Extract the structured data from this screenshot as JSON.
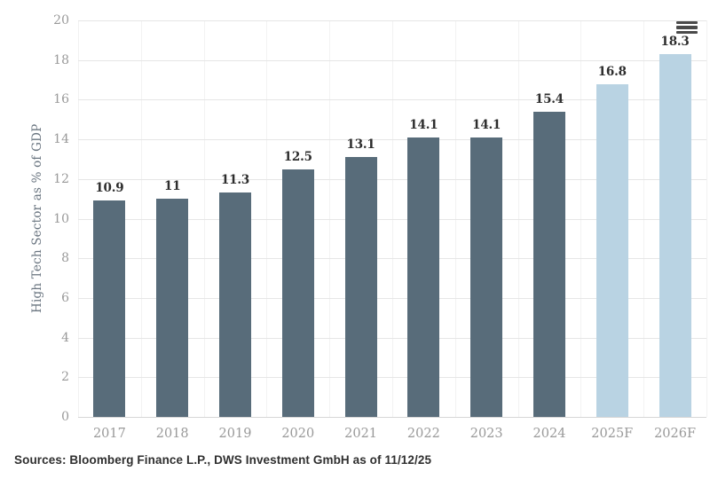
{
  "source_line": "Sources: Bloomberg Finance L.P., DWS Investment GmbH as of 11/12/25",
  "icons": {
    "menu": "hamburger-icon"
  },
  "chart_data": {
    "type": "bar",
    "title": "",
    "xlabel": "",
    "ylabel": "High Tech Sector as % of GDP",
    "categories": [
      "2017",
      "2018",
      "2019",
      "2020",
      "2021",
      "2022",
      "2023",
      "2024",
      "2025F",
      "2026F"
    ],
    "values": [
      10.9,
      11,
      11.3,
      12.5,
      13.1,
      14.1,
      14.1,
      15.4,
      16.8,
      18.3
    ],
    "value_labels": [
      "10.9",
      "11",
      "11.3",
      "12.5",
      "13.1",
      "14.1",
      "14.1",
      "15.4",
      "16.8",
      "18.3"
    ],
    "forecast": [
      false,
      false,
      false,
      false,
      false,
      false,
      false,
      false,
      true,
      true
    ],
    "ylim": [
      0,
      20
    ],
    "ytick_interval": 2,
    "grid": true,
    "legend_position": "none",
    "colors": {
      "actual": "#586C7A",
      "forecast": "#B9D3E3",
      "grid_horizontal": "#E6E6E6",
      "grid_vertical": "#F2F2F2",
      "axis_line": "#D6D6D6",
      "tick_label": "#999999",
      "value_label": "#2D2D2D",
      "axis_title": "#6A7580",
      "menu_icon": "#4A4A4A",
      "source_text": "#2F2F2F"
    }
  }
}
